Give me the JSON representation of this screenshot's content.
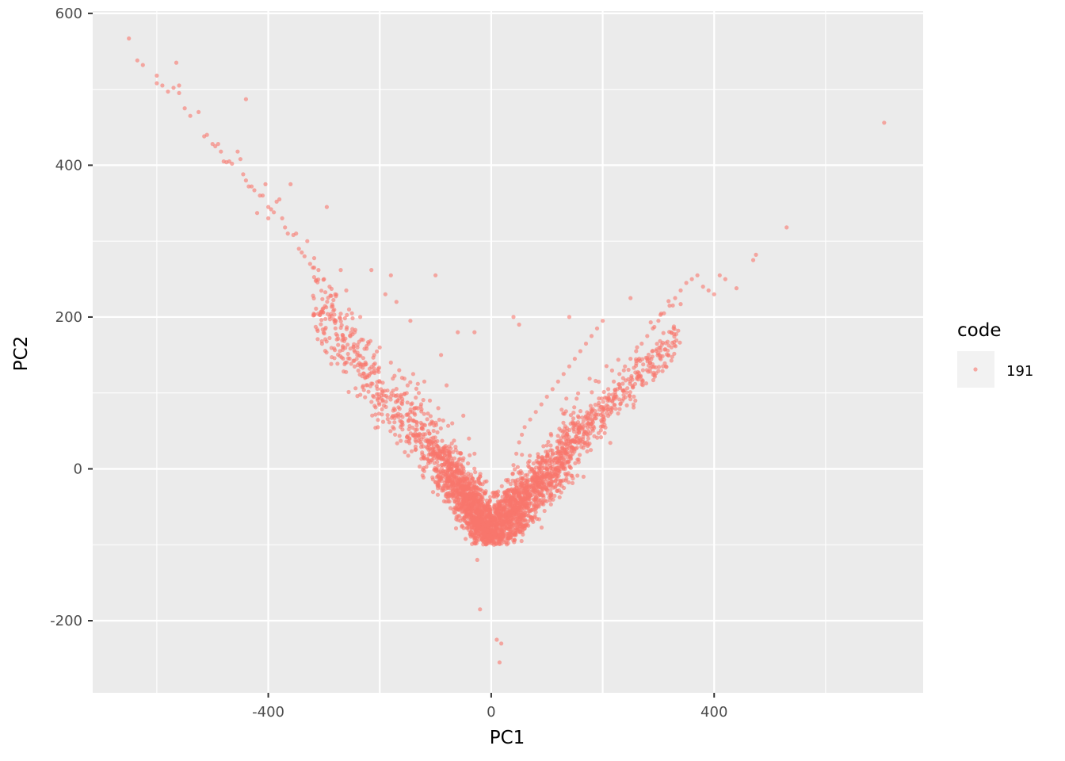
{
  "chart_data": {
    "type": "scatter",
    "title": "",
    "xlabel": "PC1",
    "ylabel": "PC2",
    "xlim": [
      -715,
      775
    ],
    "ylim": [
      -295,
      603
    ],
    "x_ticks": [
      -400,
      0,
      400
    ],
    "y_ticks": [
      -200,
      0,
      200,
      400,
      600
    ],
    "x_tick_labels": [
      "-400",
      "0",
      "400"
    ],
    "y_tick_labels": [
      "-200",
      "0",
      "200",
      "400",
      "600"
    ],
    "grid": true,
    "panel_background": "#ebebeb",
    "point_color": "#f8766d",
    "legend": {
      "title": "code",
      "position": "right",
      "entries": [
        {
          "label": "191",
          "color": "#f8766d"
        }
      ]
    },
    "series": [
      {
        "name": "191",
        "points": [
          [
            -650,
            567
          ],
          [
            -635,
            538
          ],
          [
            -625,
            532
          ],
          [
            -600,
            518
          ],
          [
            -600,
            508
          ],
          [
            -590,
            505
          ],
          [
            -580,
            497
          ],
          [
            -570,
            502
          ],
          [
            -565,
            535
          ],
          [
            -560,
            495
          ],
          [
            -560,
            505
          ],
          [
            -550,
            475
          ],
          [
            -540,
            465
          ],
          [
            -525,
            470
          ],
          [
            -515,
            438
          ],
          [
            -510,
            440
          ],
          [
            -500,
            428
          ],
          [
            -495,
            425
          ],
          [
            -490,
            428
          ],
          [
            -485,
            418
          ],
          [
            -480,
            405
          ],
          [
            -475,
            404
          ],
          [
            -470,
            405
          ],
          [
            -465,
            402
          ],
          [
            -455,
            418
          ],
          [
            -450,
            408
          ],
          [
            -445,
            388
          ],
          [
            -440,
            487
          ],
          [
            -440,
            380
          ],
          [
            -435,
            372
          ],
          [
            -430,
            372
          ],
          [
            -425,
            367
          ],
          [
            -420,
            337
          ],
          [
            -415,
            360
          ],
          [
            -410,
            360
          ],
          [
            -405,
            375
          ],
          [
            -400,
            345
          ],
          [
            -400,
            330
          ],
          [
            -395,
            342
          ],
          [
            -390,
            338
          ],
          [
            -385,
            352
          ],
          [
            -380,
            355
          ],
          [
            -375,
            330
          ],
          [
            -370,
            318
          ],
          [
            -365,
            310
          ],
          [
            -360,
            375
          ],
          [
            -355,
            308
          ],
          [
            -350,
            310
          ],
          [
            -345,
            290
          ],
          [
            -340,
            285
          ],
          [
            -335,
            280
          ],
          [
            -330,
            300
          ],
          [
            -325,
            270
          ],
          [
            -320,
            265
          ],
          [
            -310,
            262
          ],
          [
            -300,
            250
          ],
          [
            -295,
            345
          ],
          [
            -290,
            240
          ],
          [
            -280,
            230
          ],
          [
            -270,
            262
          ],
          [
            -260,
            235
          ],
          [
            -255,
            210
          ],
          [
            -250,
            205
          ],
          [
            -245,
            180
          ],
          [
            -240,
            160
          ],
          [
            -235,
            200
          ],
          [
            -230,
            170
          ],
          [
            -220,
            165
          ],
          [
            -215,
            262
          ],
          [
            -210,
            150
          ],
          [
            -200,
            160
          ],
          [
            -190,
            230
          ],
          [
            -180,
            140
          ],
          [
            -170,
            220
          ],
          [
            -165,
            130
          ],
          [
            -160,
            120
          ],
          [
            -150,
            110
          ],
          [
            -145,
            195
          ],
          [
            -140,
            125
          ],
          [
            -130,
            100
          ],
          [
            -120,
            115
          ],
          [
            -110,
            90
          ],
          [
            -100,
            255
          ],
          [
            -95,
            80
          ],
          [
            -90,
            150
          ],
          [
            -80,
            110
          ],
          [
            -70,
            60
          ],
          [
            -60,
            180
          ],
          [
            -50,
            70
          ],
          [
            -40,
            40
          ],
          [
            -30,
            20
          ],
          [
            -20,
            -10
          ],
          [
            -15,
            -40
          ],
          [
            -10,
            -60
          ],
          [
            -5,
            -80
          ],
          [
            0,
            -95
          ],
          [
            5,
            -100
          ],
          [
            10,
            -98
          ],
          [
            15,
            -90
          ],
          [
            20,
            -75
          ],
          [
            25,
            -60
          ],
          [
            30,
            -40
          ],
          [
            35,
            -20
          ],
          [
            40,
            5
          ],
          [
            45,
            20
          ],
          [
            50,
            35
          ],
          [
            55,
            45
          ],
          [
            60,
            55
          ],
          [
            70,
            65
          ],
          [
            80,
            75
          ],
          [
            90,
            85
          ],
          [
            100,
            95
          ],
          [
            110,
            105
          ],
          [
            120,
            115
          ],
          [
            130,
            125
          ],
          [
            140,
            135
          ],
          [
            150,
            145
          ],
          [
            160,
            155
          ],
          [
            170,
            165
          ],
          [
            180,
            175
          ],
          [
            190,
            185
          ],
          [
            200,
            195
          ],
          [
            210,
            105
          ],
          [
            220,
            115
          ],
          [
            230,
            125
          ],
          [
            240,
            135
          ],
          [
            250,
            145
          ],
          [
            260,
            155
          ],
          [
            270,
            165
          ],
          [
            280,
            175
          ],
          [
            290,
            185
          ],
          [
            300,
            195
          ],
          [
            310,
            205
          ],
          [
            320,
            215
          ],
          [
            330,
            225
          ],
          [
            340,
            235
          ],
          [
            350,
            245
          ],
          [
            360,
            250
          ],
          [
            370,
            255
          ],
          [
            380,
            240
          ],
          [
            390,
            235
          ],
          [
            400,
            230
          ],
          [
            410,
            255
          ],
          [
            420,
            250
          ],
          [
            440,
            238
          ],
          [
            470,
            275
          ],
          [
            475,
            282
          ],
          [
            530,
            318
          ],
          [
            705,
            456
          ],
          [
            40,
            200
          ],
          [
            50,
            190
          ],
          [
            140,
            200
          ],
          [
            250,
            225
          ],
          [
            -30,
            180
          ],
          [
            -180,
            255
          ],
          [
            -25,
            -120
          ],
          [
            -20,
            -185
          ],
          [
            10,
            -225
          ],
          [
            18,
            -230
          ],
          [
            15,
            -255
          ]
        ]
      }
    ]
  }
}
